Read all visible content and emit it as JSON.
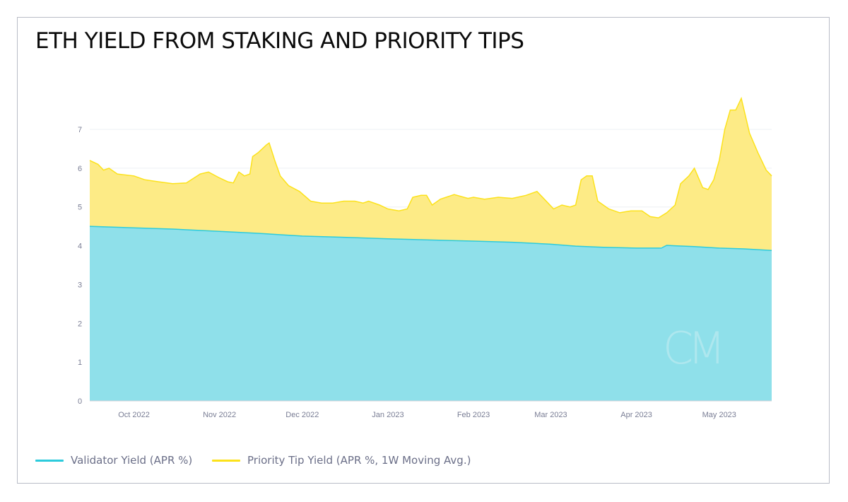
{
  "chart_data": {
    "type": "area",
    "title": "ETH YIELD FROM STAKING AND PRIORITY TIPS",
    "stacked": true,
    "x_start": "2022-09-15",
    "x_end": "2023-05-20",
    "ylim": [
      0,
      7
    ],
    "yticks": [
      0,
      1,
      2,
      3,
      4,
      5,
      6,
      7
    ],
    "xticks": [
      {
        "date": "2022-10-01",
        "label": "Oct 2022"
      },
      {
        "date": "2022-11-01",
        "label": "Nov 2022"
      },
      {
        "date": "2022-12-01",
        "label": "Dec 2022"
      },
      {
        "date": "2023-01-01",
        "label": "Jan 2023"
      },
      {
        "date": "2023-02-01",
        "label": "Feb 2023"
      },
      {
        "date": "2023-03-01",
        "label": "Mar 2023"
      },
      {
        "date": "2023-04-01",
        "label": "Apr 2023"
      },
      {
        "date": "2023-05-01",
        "label": "May 2023"
      }
    ],
    "grid": true,
    "legend_position": "bottom-left",
    "series": [
      {
        "name": "Validator Yield (APR %)",
        "color": "#2ccbdc",
        "fill": "#8fe0ea",
        "points": [
          [
            "2022-09-15",
            4.5
          ],
          [
            "2022-10-01",
            4.46
          ],
          [
            "2022-10-15",
            4.43
          ],
          [
            "2022-11-01",
            4.37
          ],
          [
            "2022-11-15",
            4.32
          ],
          [
            "2022-12-01",
            4.25
          ],
          [
            "2022-12-15",
            4.22
          ],
          [
            "2023-01-01",
            4.18
          ],
          [
            "2023-01-15",
            4.15
          ],
          [
            "2023-02-01",
            4.12
          ],
          [
            "2023-02-15",
            4.09
          ],
          [
            "2023-03-01",
            4.04
          ],
          [
            "2023-03-10",
            3.99
          ],
          [
            "2023-03-20",
            3.96
          ],
          [
            "2023-04-01",
            3.94
          ],
          [
            "2023-04-10",
            3.94
          ],
          [
            "2023-04-12",
            4.01
          ],
          [
            "2023-04-15",
            4.0
          ],
          [
            "2023-04-22",
            3.98
          ],
          [
            "2023-05-01",
            3.94
          ],
          [
            "2023-05-10",
            3.92
          ],
          [
            "2023-05-20",
            3.88
          ]
        ]
      },
      {
        "name": "Priority Tip Yield (APR %, 1W Moving Avg.)",
        "color": "#fce21b",
        "fill": "#fdeb86",
        "totals": [
          [
            "2022-09-15",
            6.2
          ],
          [
            "2022-09-18",
            6.1
          ],
          [
            "2022-09-20",
            5.95
          ],
          [
            "2022-09-22",
            6.0
          ],
          [
            "2022-09-25",
            5.85
          ],
          [
            "2022-10-01",
            5.8
          ],
          [
            "2022-10-05",
            5.7
          ],
          [
            "2022-10-10",
            5.65
          ],
          [
            "2022-10-15",
            5.6
          ],
          [
            "2022-10-20",
            5.62
          ],
          [
            "2022-10-25",
            5.85
          ],
          [
            "2022-10-28",
            5.9
          ],
          [
            "2022-11-01",
            5.75
          ],
          [
            "2022-11-04",
            5.65
          ],
          [
            "2022-11-06",
            5.62
          ],
          [
            "2022-11-08",
            5.9
          ],
          [
            "2022-11-10",
            5.8
          ],
          [
            "2022-11-12",
            5.85
          ],
          [
            "2022-11-13",
            6.3
          ],
          [
            "2022-11-15",
            6.4
          ],
          [
            "2022-11-18",
            6.6
          ],
          [
            "2022-11-19",
            6.65
          ],
          [
            "2022-11-21",
            6.2
          ],
          [
            "2022-11-23",
            5.8
          ],
          [
            "2022-11-26",
            5.55
          ],
          [
            "2022-11-30",
            5.4
          ],
          [
            "2022-12-04",
            5.15
          ],
          [
            "2022-12-08",
            5.1
          ],
          [
            "2022-12-12",
            5.1
          ],
          [
            "2022-12-16",
            5.15
          ],
          [
            "2022-12-20",
            5.15
          ],
          [
            "2022-12-23",
            5.1
          ],
          [
            "2022-12-25",
            5.15
          ],
          [
            "2022-12-29",
            5.05
          ],
          [
            "2023-01-01",
            4.95
          ],
          [
            "2023-01-05",
            4.9
          ],
          [
            "2023-01-08",
            4.95
          ],
          [
            "2023-01-10",
            5.25
          ],
          [
            "2023-01-13",
            5.3
          ],
          [
            "2023-01-15",
            5.3
          ],
          [
            "2023-01-17",
            5.05
          ],
          [
            "2023-01-20",
            5.2
          ],
          [
            "2023-01-25",
            5.32
          ],
          [
            "2023-01-30",
            5.22
          ],
          [
            "2023-02-01",
            5.25
          ],
          [
            "2023-02-05",
            5.2
          ],
          [
            "2023-02-10",
            5.25
          ],
          [
            "2023-02-15",
            5.22
          ],
          [
            "2023-02-20",
            5.3
          ],
          [
            "2023-02-24",
            5.4
          ],
          [
            "2023-02-28",
            5.1
          ],
          [
            "2023-03-02",
            4.95
          ],
          [
            "2023-03-05",
            5.05
          ],
          [
            "2023-03-08",
            5.0
          ],
          [
            "2023-03-10",
            5.05
          ],
          [
            "2023-03-12",
            5.7
          ],
          [
            "2023-03-14",
            5.8
          ],
          [
            "2023-03-16",
            5.8
          ],
          [
            "2023-03-18",
            5.15
          ],
          [
            "2023-03-22",
            4.95
          ],
          [
            "2023-03-26",
            4.85
          ],
          [
            "2023-03-30",
            4.9
          ],
          [
            "2023-04-03",
            4.9
          ],
          [
            "2023-04-06",
            4.75
          ],
          [
            "2023-04-09",
            4.72
          ],
          [
            "2023-04-12",
            4.85
          ],
          [
            "2023-04-15",
            5.05
          ],
          [
            "2023-04-17",
            5.6
          ],
          [
            "2023-04-20",
            5.8
          ],
          [
            "2023-04-22",
            6.0
          ],
          [
            "2023-04-25",
            5.5
          ],
          [
            "2023-04-27",
            5.45
          ],
          [
            "2023-04-29",
            5.7
          ],
          [
            "2023-05-01",
            6.2
          ],
          [
            "2023-05-03",
            7.0
          ],
          [
            "2023-05-05",
            7.5
          ],
          [
            "2023-05-07",
            7.5
          ],
          [
            "2023-05-09",
            7.8
          ],
          [
            "2023-05-12",
            6.9
          ],
          [
            "2023-05-15",
            6.4
          ],
          [
            "2023-05-18",
            5.95
          ],
          [
            "2023-05-20",
            5.8
          ]
        ]
      }
    ]
  },
  "legend": {
    "validator_label": "Validator Yield (APR %)",
    "tip_label": "Priority Tip Yield (APR %, 1W Moving Avg.)"
  },
  "watermark": {
    "text": "CM"
  }
}
